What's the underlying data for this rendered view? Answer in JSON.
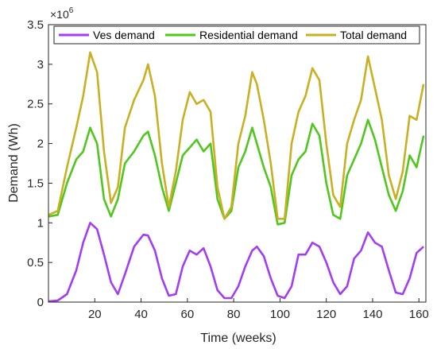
{
  "chart_data": {
    "type": "line",
    "xlabel": "Time (weeks)",
    "ylabel": "Demand (Wh)",
    "y_scale_label": "×10",
    "y_scale_exponent": "6",
    "xlim": [
      0,
      163
    ],
    "ylim": [
      0,
      3.5
    ],
    "xticks": [
      20,
      40,
      60,
      80,
      100,
      120,
      140,
      160
    ],
    "yticks": [
      0,
      0.5,
      1,
      1.5,
      2,
      2.5,
      3,
      3.5
    ],
    "ytick_labels": [
      "0",
      "0.5",
      "1",
      "1.5",
      "2",
      "2.5",
      "3",
      "3.5"
    ],
    "grid": false,
    "legend_position": "top",
    "x": [
      0,
      4,
      8,
      12,
      15,
      18,
      21,
      24,
      27,
      30,
      33,
      37,
      41,
      43,
      46,
      49,
      52,
      55,
      58,
      61,
      64,
      67,
      70,
      73,
      76,
      79,
      82,
      85,
      88,
      90,
      93,
      96,
      99,
      102,
      105,
      108,
      111,
      114,
      117,
      120,
      123,
      126,
      129,
      132,
      135,
      138,
      141,
      144,
      147,
      150,
      153,
      156,
      159,
      162
    ],
    "series": [
      {
        "name": "Ves demand",
        "color": "#a23df5",
        "values": [
          0.01,
          0.02,
          0.1,
          0.4,
          0.75,
          1.0,
          0.92,
          0.6,
          0.25,
          0.1,
          0.35,
          0.7,
          0.85,
          0.84,
          0.65,
          0.3,
          0.08,
          0.1,
          0.45,
          0.65,
          0.6,
          0.68,
          0.45,
          0.15,
          0.05,
          0.05,
          0.2,
          0.45,
          0.65,
          0.7,
          0.58,
          0.3,
          0.08,
          0.05,
          0.2,
          0.6,
          0.6,
          0.75,
          0.7,
          0.5,
          0.25,
          0.1,
          0.2,
          0.55,
          0.65,
          0.88,
          0.75,
          0.7,
          0.4,
          0.12,
          0.1,
          0.3,
          0.62,
          0.7
        ]
      },
      {
        "name": "Residential demand",
        "color": "#4fc71d",
        "values": [
          1.08,
          1.1,
          1.5,
          1.8,
          1.9,
          2.2,
          2.0,
          1.3,
          1.08,
          1.3,
          1.75,
          1.9,
          2.1,
          2.15,
          1.85,
          1.45,
          1.15,
          1.5,
          1.85,
          1.95,
          2.05,
          1.9,
          2.0,
          1.3,
          1.05,
          1.15,
          1.7,
          1.9,
          2.2,
          2.0,
          1.7,
          1.45,
          0.98,
          1.0,
          1.6,
          1.8,
          1.9,
          2.25,
          2.1,
          1.5,
          1.1,
          1.05,
          1.6,
          1.8,
          2.0,
          2.3,
          2.05,
          1.7,
          1.35,
          1.15,
          1.4,
          1.85,
          1.7,
          2.1
        ]
      },
      {
        "name": "Total demand",
        "color": "#c9b022",
        "values": [
          1.1,
          1.15,
          1.7,
          2.2,
          2.6,
          3.15,
          2.9,
          1.9,
          1.25,
          1.45,
          2.2,
          2.55,
          2.8,
          3.0,
          2.6,
          1.75,
          1.2,
          1.65,
          2.3,
          2.65,
          2.5,
          2.55,
          2.4,
          1.45,
          1.05,
          1.2,
          2.0,
          2.35,
          2.9,
          2.75,
          2.3,
          1.75,
          1.05,
          1.05,
          2.0,
          2.4,
          2.6,
          2.95,
          2.8,
          2.0,
          1.35,
          1.2,
          2.0,
          2.3,
          2.55,
          3.1,
          2.7,
          2.3,
          1.6,
          1.3,
          1.65,
          2.35,
          2.3,
          2.75
        ]
      }
    ]
  }
}
